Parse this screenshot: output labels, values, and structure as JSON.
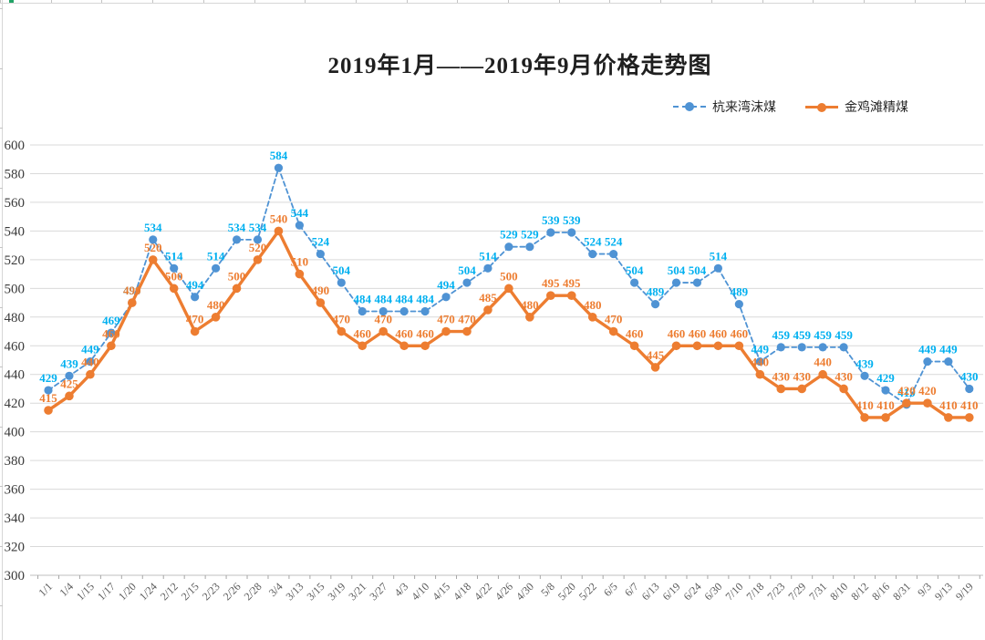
{
  "chart_data": {
    "type": "line",
    "title": "2019年1月——2019年9月价格走势图",
    "xlabel": "",
    "ylabel": "",
    "ylim": [
      300,
      600
    ],
    "ytick_step": 20,
    "yticks": [
      300,
      320,
      340,
      360,
      380,
      400,
      420,
      440,
      460,
      480,
      500,
      520,
      540,
      560,
      580,
      600
    ],
    "grid": true,
    "legend_position": "top-right",
    "background": "#FFFFFF",
    "colors": {
      "grid": "#D9D9D9",
      "axis_line": "#BFBFBF",
      "axis_tick": "#A6A6A6",
      "y_label": "#3a3a3a",
      "x_label": "#595959",
      "title": "#1F1F1F"
    },
    "categories": [
      "1/1",
      "1/4",
      "1/15",
      "1/17",
      "1/20",
      "1/24",
      "2/12",
      "2/15",
      "2/23",
      "2/26",
      "2/28",
      "3/4",
      "3/13",
      "3/15",
      "3/19",
      "3/21",
      "3/27",
      "4/3",
      "4/10",
      "4/15",
      "4/18",
      "4/22",
      "4/26",
      "4/30",
      "5/8",
      "5/20",
      "5/22",
      "6/5",
      "6/7",
      "6/13",
      "6/19",
      "6/24",
      "6/30",
      "7/10",
      "7/18",
      "7/23",
      "7/29",
      "7/31",
      "8/10",
      "8/12",
      "8/16",
      "8/31",
      "9/3",
      "9/13",
      "9/19"
    ],
    "series": [
      {
        "name": "杭来湾沫煤",
        "style": "dashed",
        "color": "#4F93D4",
        "label_color": "#00B0F0",
        "values": [
          429,
          439,
          449,
          469,
          490,
          534,
          514,
          494,
          514,
          534,
          534,
          584,
          544,
          524,
          504,
          484,
          484,
          484,
          484,
          494,
          504,
          514,
          529,
          529,
          539,
          539,
          524,
          524,
          504,
          489,
          504,
          504,
          514,
          489,
          449,
          459,
          459,
          459,
          459,
          439,
          429,
          419,
          449,
          449,
          430
        ]
      },
      {
        "name": "金鸡滩精煤",
        "style": "solid",
        "color": "#ED7D31",
        "label_color": "#ED7D31",
        "values": [
          415,
          425,
          440,
          460,
          490,
          520,
          500,
          470,
          480,
          500,
          520,
          540,
          510,
          490,
          470,
          460,
          470,
          460,
          460,
          470,
          470,
          485,
          500,
          480,
          495,
          495,
          480,
          470,
          460,
          445,
          460,
          460,
          460,
          460,
          440,
          430,
          430,
          440,
          430,
          410,
          410,
          420,
          420,
          410,
          410
        ]
      }
    ]
  }
}
